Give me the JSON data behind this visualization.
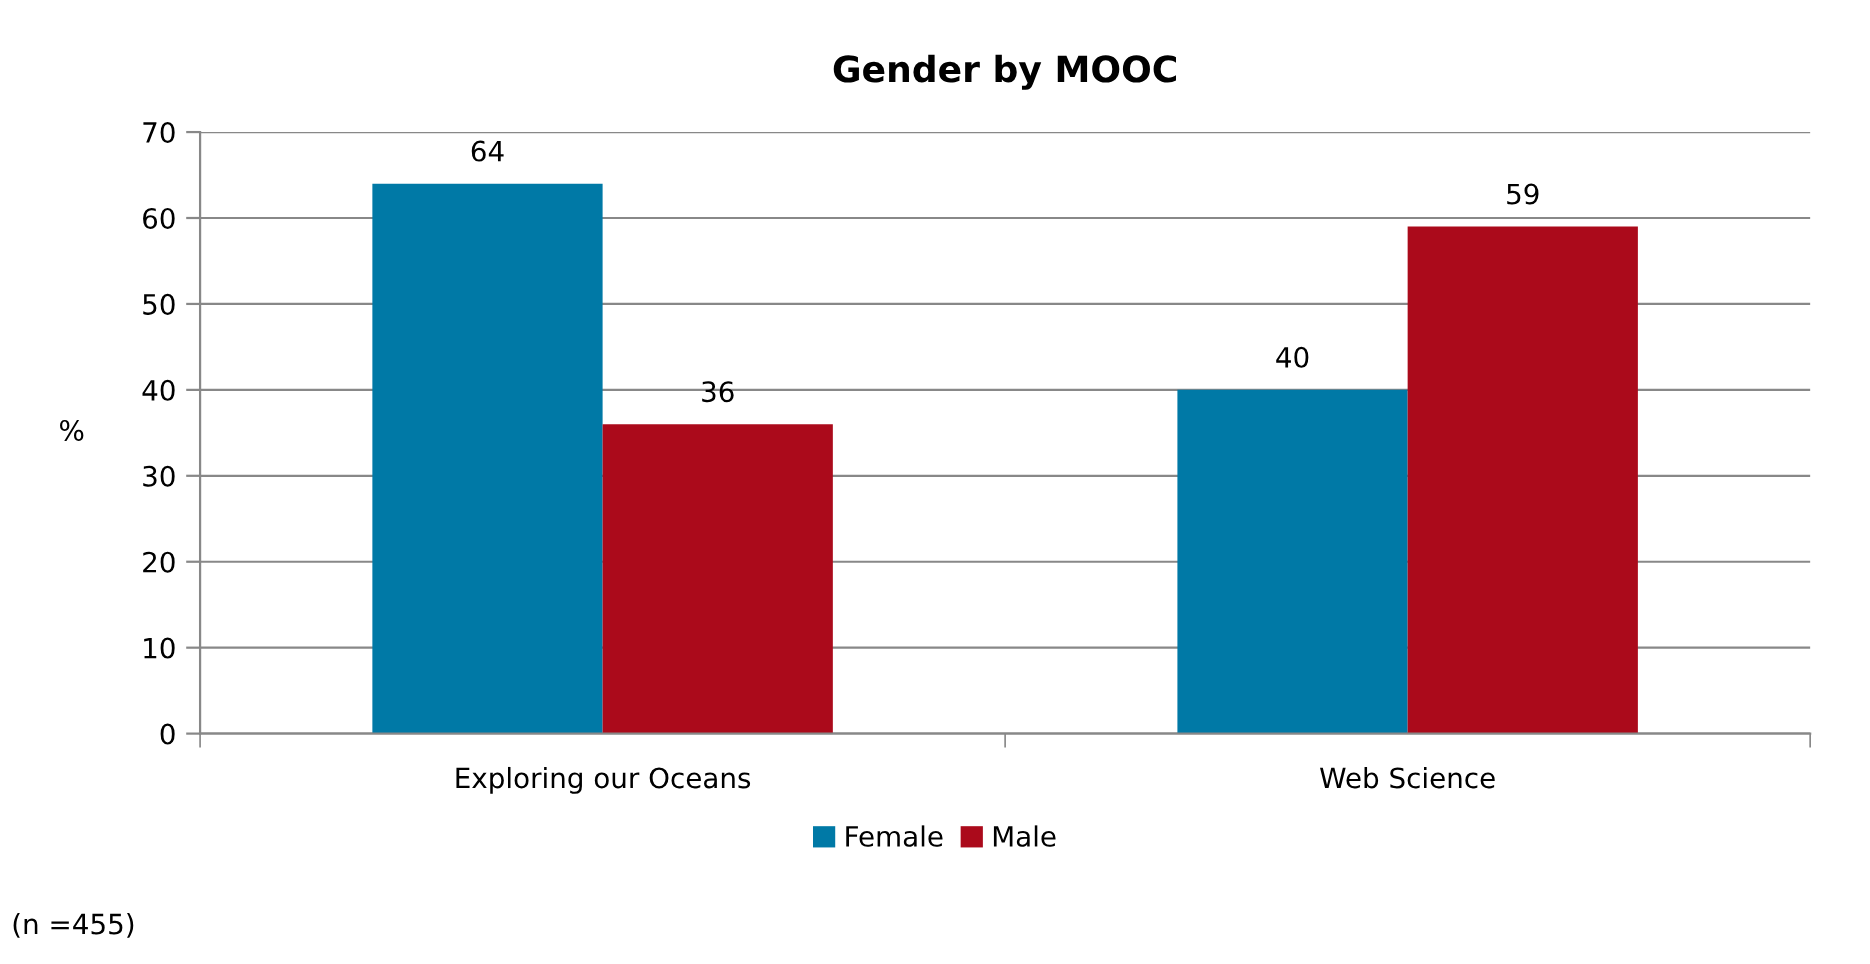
{
  "chart_data": {
    "type": "bar",
    "title": "Gender by MOOC",
    "ylabel": "%",
    "categories": [
      "Exploring our Oceans",
      "Web Science"
    ],
    "series": [
      {
        "name": "Female",
        "color": "#0079a6",
        "values": [
          64,
          40
        ]
      },
      {
        "name": "Male",
        "color": "#ab0a1b",
        "values": [
          36,
          59
        ]
      }
    ],
    "ylim": [
      0,
      70
    ],
    "yticks": [
      0,
      10,
      20,
      30,
      40,
      50,
      60,
      70
    ],
    "grid": "y",
    "data_labels": true,
    "legend": "bottom",
    "annotations": [
      "(n =455)"
    ]
  }
}
